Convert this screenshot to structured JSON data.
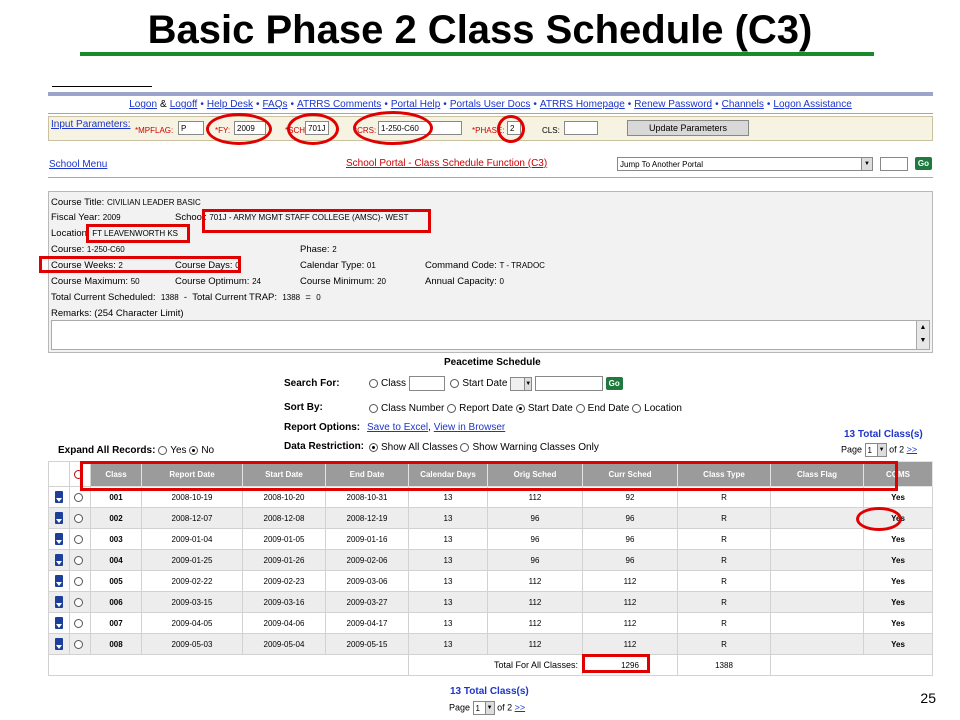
{
  "slide": {
    "title": "Basic Phase 2 Class Schedule (C3)",
    "page_number": "25"
  },
  "links": [
    "Logon",
    "Logoff",
    "Help Desk",
    "FAQs",
    "ATRRS Comments",
    "Portal Help",
    "Portals User Docs",
    "ATRRS Homepage",
    "Renew Password",
    "Channels",
    "Logon Assistance"
  ],
  "params": {
    "label": "Input Parameters:",
    "mpflag_label": "*MPFLAG:",
    "mpflag": "P",
    "fy_label": "*FY:",
    "fy": "2009",
    "sch_label": "*SCH:",
    "sch": "701J",
    "crs_label": "*CRS:",
    "crs": "1-250-C60",
    "phase_label": "*PHASE:",
    "phase": "2",
    "cls_label": "CLS:",
    "cls": "",
    "update_button": "Update Parameters"
  },
  "nav": {
    "school_menu": "School Menu",
    "portal_title": "School Portal - Class Schedule Function (C3)",
    "jump_select": "Jump To Another Portal",
    "go": "Go"
  },
  "course": {
    "title_label": "Course Title:",
    "title": "CIVILIAN LEADER BASIC",
    "fy_label": "Fiscal Year:",
    "fy": "2009",
    "school_label": "School:",
    "school": "701J - ARMY MGMT STAFF COLLEGE (AMSC)- WEST",
    "location_label": "Location:",
    "location": "FT LEAVENWORTH KS",
    "course_label": "Course:",
    "course": "1-250-C60",
    "phase_label": "Phase:",
    "phase": "2",
    "weeks_label": "Course Weeks:",
    "weeks": "2",
    "days_label": "Course Days:",
    "days": "0",
    "cal_type_label": "Calendar Type:",
    "cal_type": "01",
    "cmd_label": "Command Code:",
    "cmd": "T - TRADOC",
    "max_label": "Course Maximum:",
    "max": "50",
    "opt_label": "Course Optimum:",
    "opt": "24",
    "min_label": "Course Minimum:",
    "min": "20",
    "cap_label": "Annual Capacity:",
    "cap": "0",
    "total_sched_label": "Total Current Scheduled:",
    "total_sched": "1388",
    "dash": "-",
    "total_trap_label": "Total Current TRAP:",
    "total_trap": "1388",
    "eq": "=",
    "diff": "0",
    "remarks_label": "Remarks: (254 Character Limit)"
  },
  "schedule": {
    "heading": "Peacetime Schedule",
    "search_for": "Search For:",
    "opt_class": "Class",
    "opt_start_date": "Start Date",
    "sort_by": "Sort By:",
    "sort_options": [
      "Class Number",
      "Report Date",
      "Start Date",
      "End Date",
      "Location"
    ],
    "report_options": "Report Options:",
    "save_excel": "Save to Excel",
    "comma": ",",
    "view_browser": "View in Browser",
    "data_restriction": "Data Restriction:",
    "show_all": "Show All Classes",
    "show_warning": "Show Warning Classes Only",
    "expand_all": "Expand All Records:",
    "yes": "Yes",
    "no": "No",
    "total_classes": "13 Total Class(s)",
    "page_label": "Page",
    "page_value": "1",
    "of_pages": "of 2",
    "next": ">>"
  },
  "table": {
    "headers": [
      "Class",
      "Report Date",
      "Start Date",
      "End Date",
      "Calendar Days",
      "Orig Sched",
      "Curr Sched",
      "Class Type",
      "Class Flag",
      "CQMS"
    ],
    "rows": [
      [
        "001",
        "2008-10-19",
        "2008-10-20",
        "2008-10-31",
        "13",
        "112",
        "92",
        "R",
        "",
        "Yes"
      ],
      [
        "002",
        "2008-12-07",
        "2008-12-08",
        "2008-12-19",
        "13",
        "96",
        "96",
        "R",
        "",
        "Yes"
      ],
      [
        "003",
        "2009-01-04",
        "2009-01-05",
        "2009-01-16",
        "13",
        "96",
        "96",
        "R",
        "",
        "Yes"
      ],
      [
        "004",
        "2009-01-25",
        "2009-01-26",
        "2009-02-06",
        "13",
        "96",
        "96",
        "R",
        "",
        "Yes"
      ],
      [
        "005",
        "2009-02-22",
        "2009-02-23",
        "2009-03-06",
        "13",
        "112",
        "112",
        "R",
        "",
        "Yes"
      ],
      [
        "006",
        "2009-03-15",
        "2009-03-16",
        "2009-03-27",
        "13",
        "112",
        "112",
        "R",
        "",
        "Yes"
      ],
      [
        "007",
        "2009-04-05",
        "2009-04-06",
        "2009-04-17",
        "13",
        "112",
        "112",
        "R",
        "",
        "Yes"
      ],
      [
        "008",
        "2009-05-03",
        "2009-05-04",
        "2009-05-15",
        "13",
        "112",
        "112",
        "R",
        "",
        "Yes"
      ]
    ],
    "total_label": "Total For All Classes:",
    "total_orig": "1296",
    "total_curr": "1388"
  },
  "footer": {
    "total_classes": "13 Total Class(s)",
    "page_label": "Page",
    "page_value": "1",
    "of_pages": "of 2",
    "next": ">>"
  },
  "colors": {
    "highlight": "#e00000",
    "title_rule": "#1a8a2a",
    "link": "#1d35c8",
    "header_bg": "#9b9b9b"
  }
}
